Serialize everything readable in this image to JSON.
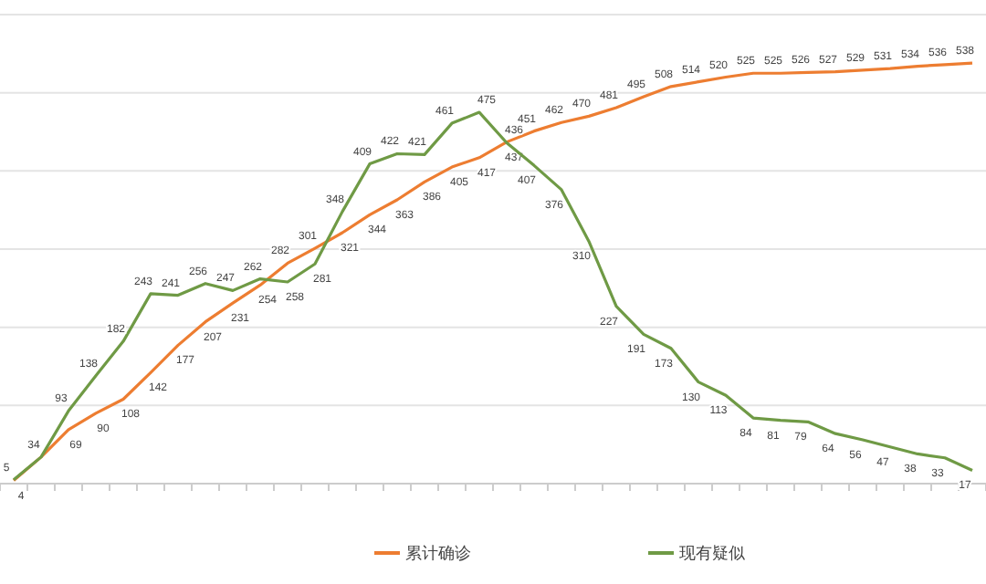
{
  "chart_data": {
    "type": "line",
    "categories": [
      null,
      null,
      null,
      null,
      null,
      null,
      null,
      null,
      null,
      null,
      null,
      null,
      null,
      null,
      null,
      null,
      null,
      null,
      null,
      null,
      null,
      null,
      null,
      null,
      null,
      null,
      null,
      null,
      null,
      null,
      null,
      null,
      null,
      null,
      null,
      null
    ],
    "series": [
      {
        "name": "累计确诊",
        "color": "#ed7d31",
        "values": [
          4,
          34,
          69,
          90,
          108,
          142,
          177,
          207,
          231,
          254,
          282,
          301,
          321,
          344,
          363,
          386,
          405,
          417,
          437,
          451,
          462,
          470,
          481,
          495,
          508,
          514,
          520,
          525,
          525,
          526,
          527,
          529,
          531,
          534,
          536,
          538
        ],
        "value_labels": [
          "4",
          null,
          "69",
          "90",
          "108",
          "142",
          "177",
          "207",
          "231",
          "254",
          "282",
          "301",
          "321",
          "344",
          "363",
          "386",
          "405",
          "417",
          "437",
          "451",
          "462",
          "470",
          "481",
          "495",
          "508",
          "514",
          "520",
          "525",
          "525",
          "526",
          "527",
          "529",
          "531",
          "534",
          "536",
          "538"
        ]
      },
      {
        "name": "现有疑似",
        "color": "#6f9a45",
        "values": [
          5,
          34,
          93,
          138,
          182,
          243,
          241,
          256,
          247,
          262,
          258,
          281,
          348,
          409,
          422,
          421,
          461,
          475,
          436,
          407,
          376,
          310,
          227,
          191,
          173,
          130,
          113,
          84,
          81,
          79,
          64,
          56,
          47,
          38,
          33,
          17
        ],
        "value_labels": [
          "5",
          "34",
          "93",
          "138",
          "182",
          "243",
          "241",
          "256",
          "247",
          "262",
          "258",
          "281",
          "348",
          "409",
          "422",
          "421",
          "461",
          "475",
          "436",
          "407",
          "376",
          "310",
          "227",
          "191",
          "173",
          "130",
          "113",
          "84",
          "81",
          "79",
          "64",
          "56",
          "47",
          "38",
          "33",
          "17"
        ]
      }
    ],
    "ylim": [
      0,
      600
    ],
    "yticks": [
      {
        "value": 0,
        "label": null
      },
      {
        "value": 100,
        "label": null
      },
      {
        "value": 200,
        "label": null
      },
      {
        "value": 300,
        "label": null
      },
      {
        "value": 400,
        "label": null
      },
      {
        "value": 500,
        "label": null
      },
      {
        "value": 600,
        "label": null
      }
    ],
    "grid": "y",
    "legend": "bottom"
  }
}
